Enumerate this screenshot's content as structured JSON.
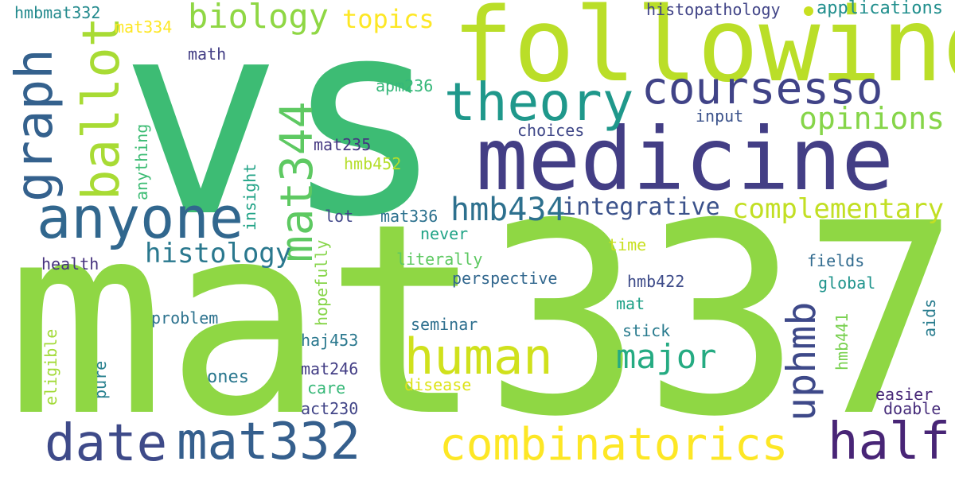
{
  "words": [
    {
      "text": "mat337",
      "color": "#8fd744"
    },
    {
      "text": "vs",
      "color": "#3dbc74"
    },
    {
      "text": "following",
      "color": "#bade28"
    },
    {
      "text": "medicine",
      "color": "#433e85"
    },
    {
      "text": "theory",
      "color": "#1f988b"
    },
    {
      "text": "coursesso",
      "color": "#404387"
    },
    {
      "text": "human",
      "color": "#d0e11c"
    },
    {
      "text": "anyone",
      "color": "#31678e"
    },
    {
      "text": "graph",
      "color": "#34618d"
    },
    {
      "text": "ballot",
      "color": "#a8db34"
    },
    {
      "text": "mat344",
      "color": "#5ec962"
    },
    {
      "text": "biology",
      "color": "#8fd744"
    },
    {
      "text": "topics",
      "color": "#fde725"
    },
    {
      "text": "opinions",
      "color": "#86d549"
    },
    {
      "text": "hmb434",
      "color": "#2d708e"
    },
    {
      "text": "integrative",
      "color": "#3b528b"
    },
    {
      "text": "complementary",
      "color": "#c2df23"
    },
    {
      "text": "histology",
      "color": "#2a788e"
    },
    {
      "text": "major",
      "color": "#25ab82"
    },
    {
      "text": "uphmb",
      "color": "#3e4989"
    },
    {
      "text": "date",
      "color": "#3e4a89"
    },
    {
      "text": "mat332",
      "color": "#355f8d"
    },
    {
      "text": "combinatorics",
      "color": "#fde725"
    },
    {
      "text": "half",
      "color": "#482576"
    },
    {
      "text": "hmbmat332",
      "color": "#238a8d"
    },
    {
      "text": "mat334",
      "color": "#fde725"
    },
    {
      "text": "math",
      "color": "#433e85"
    },
    {
      "text": "histopathology",
      "color": "#414487"
    },
    {
      "text": "applications",
      "color": "#218f8d"
    },
    {
      "text": "apm236",
      "color": "#35b779"
    },
    {
      "text": "input",
      "color": "#3b528b"
    },
    {
      "text": "choices",
      "color": "#3f4788"
    },
    {
      "text": "mat235",
      "color": "#453781"
    },
    {
      "text": "hmb452",
      "color": "#b5de2b"
    },
    {
      "text": "anything",
      "color": "#3dbc74"
    },
    {
      "text": "insight",
      "color": "#20a386"
    },
    {
      "text": "lot",
      "color": "#404688"
    },
    {
      "text": "mat336",
      "color": "#2c718e"
    },
    {
      "text": "never",
      "color": "#20a386"
    },
    {
      "text": "time",
      "color": "#c8e020"
    },
    {
      "text": "literally",
      "color": "#5ec962"
    },
    {
      "text": "fields",
      "color": "#306a8e"
    },
    {
      "text": "global",
      "color": "#1f948c"
    },
    {
      "text": "health",
      "color": "#46327e"
    },
    {
      "text": "perspective",
      "color": "#31678e"
    },
    {
      "text": "hopefully",
      "color": "#86d549"
    },
    {
      "text": "hmb422",
      "color": "#3e4c8a"
    },
    {
      "text": "mat",
      "color": "#1fa187"
    },
    {
      "text": "problem",
      "color": "#2c728e"
    },
    {
      "text": "seminar",
      "color": "#2e6f8e"
    },
    {
      "text": "stick",
      "color": "#297b8e"
    },
    {
      "text": "hmb441",
      "color": "#7ad151"
    },
    {
      "text": "aids",
      "color": "#287c8e"
    },
    {
      "text": "eligible",
      "color": "#a2da37"
    },
    {
      "text": "haj453",
      "color": "#2a788e"
    },
    {
      "text": "pure",
      "color": "#27808e"
    },
    {
      "text": "ones",
      "color": "#2a778e"
    },
    {
      "text": "mat246",
      "color": "#433e85"
    },
    {
      "text": "care",
      "color": "#37b878"
    },
    {
      "text": "disease",
      "color": "#dde318"
    },
    {
      "text": "easier",
      "color": "#482878"
    },
    {
      "text": "act230",
      "color": "#414487"
    },
    {
      "text": "doable",
      "color": "#472d7b"
    }
  ],
  "dot_color": "#c8e020"
}
